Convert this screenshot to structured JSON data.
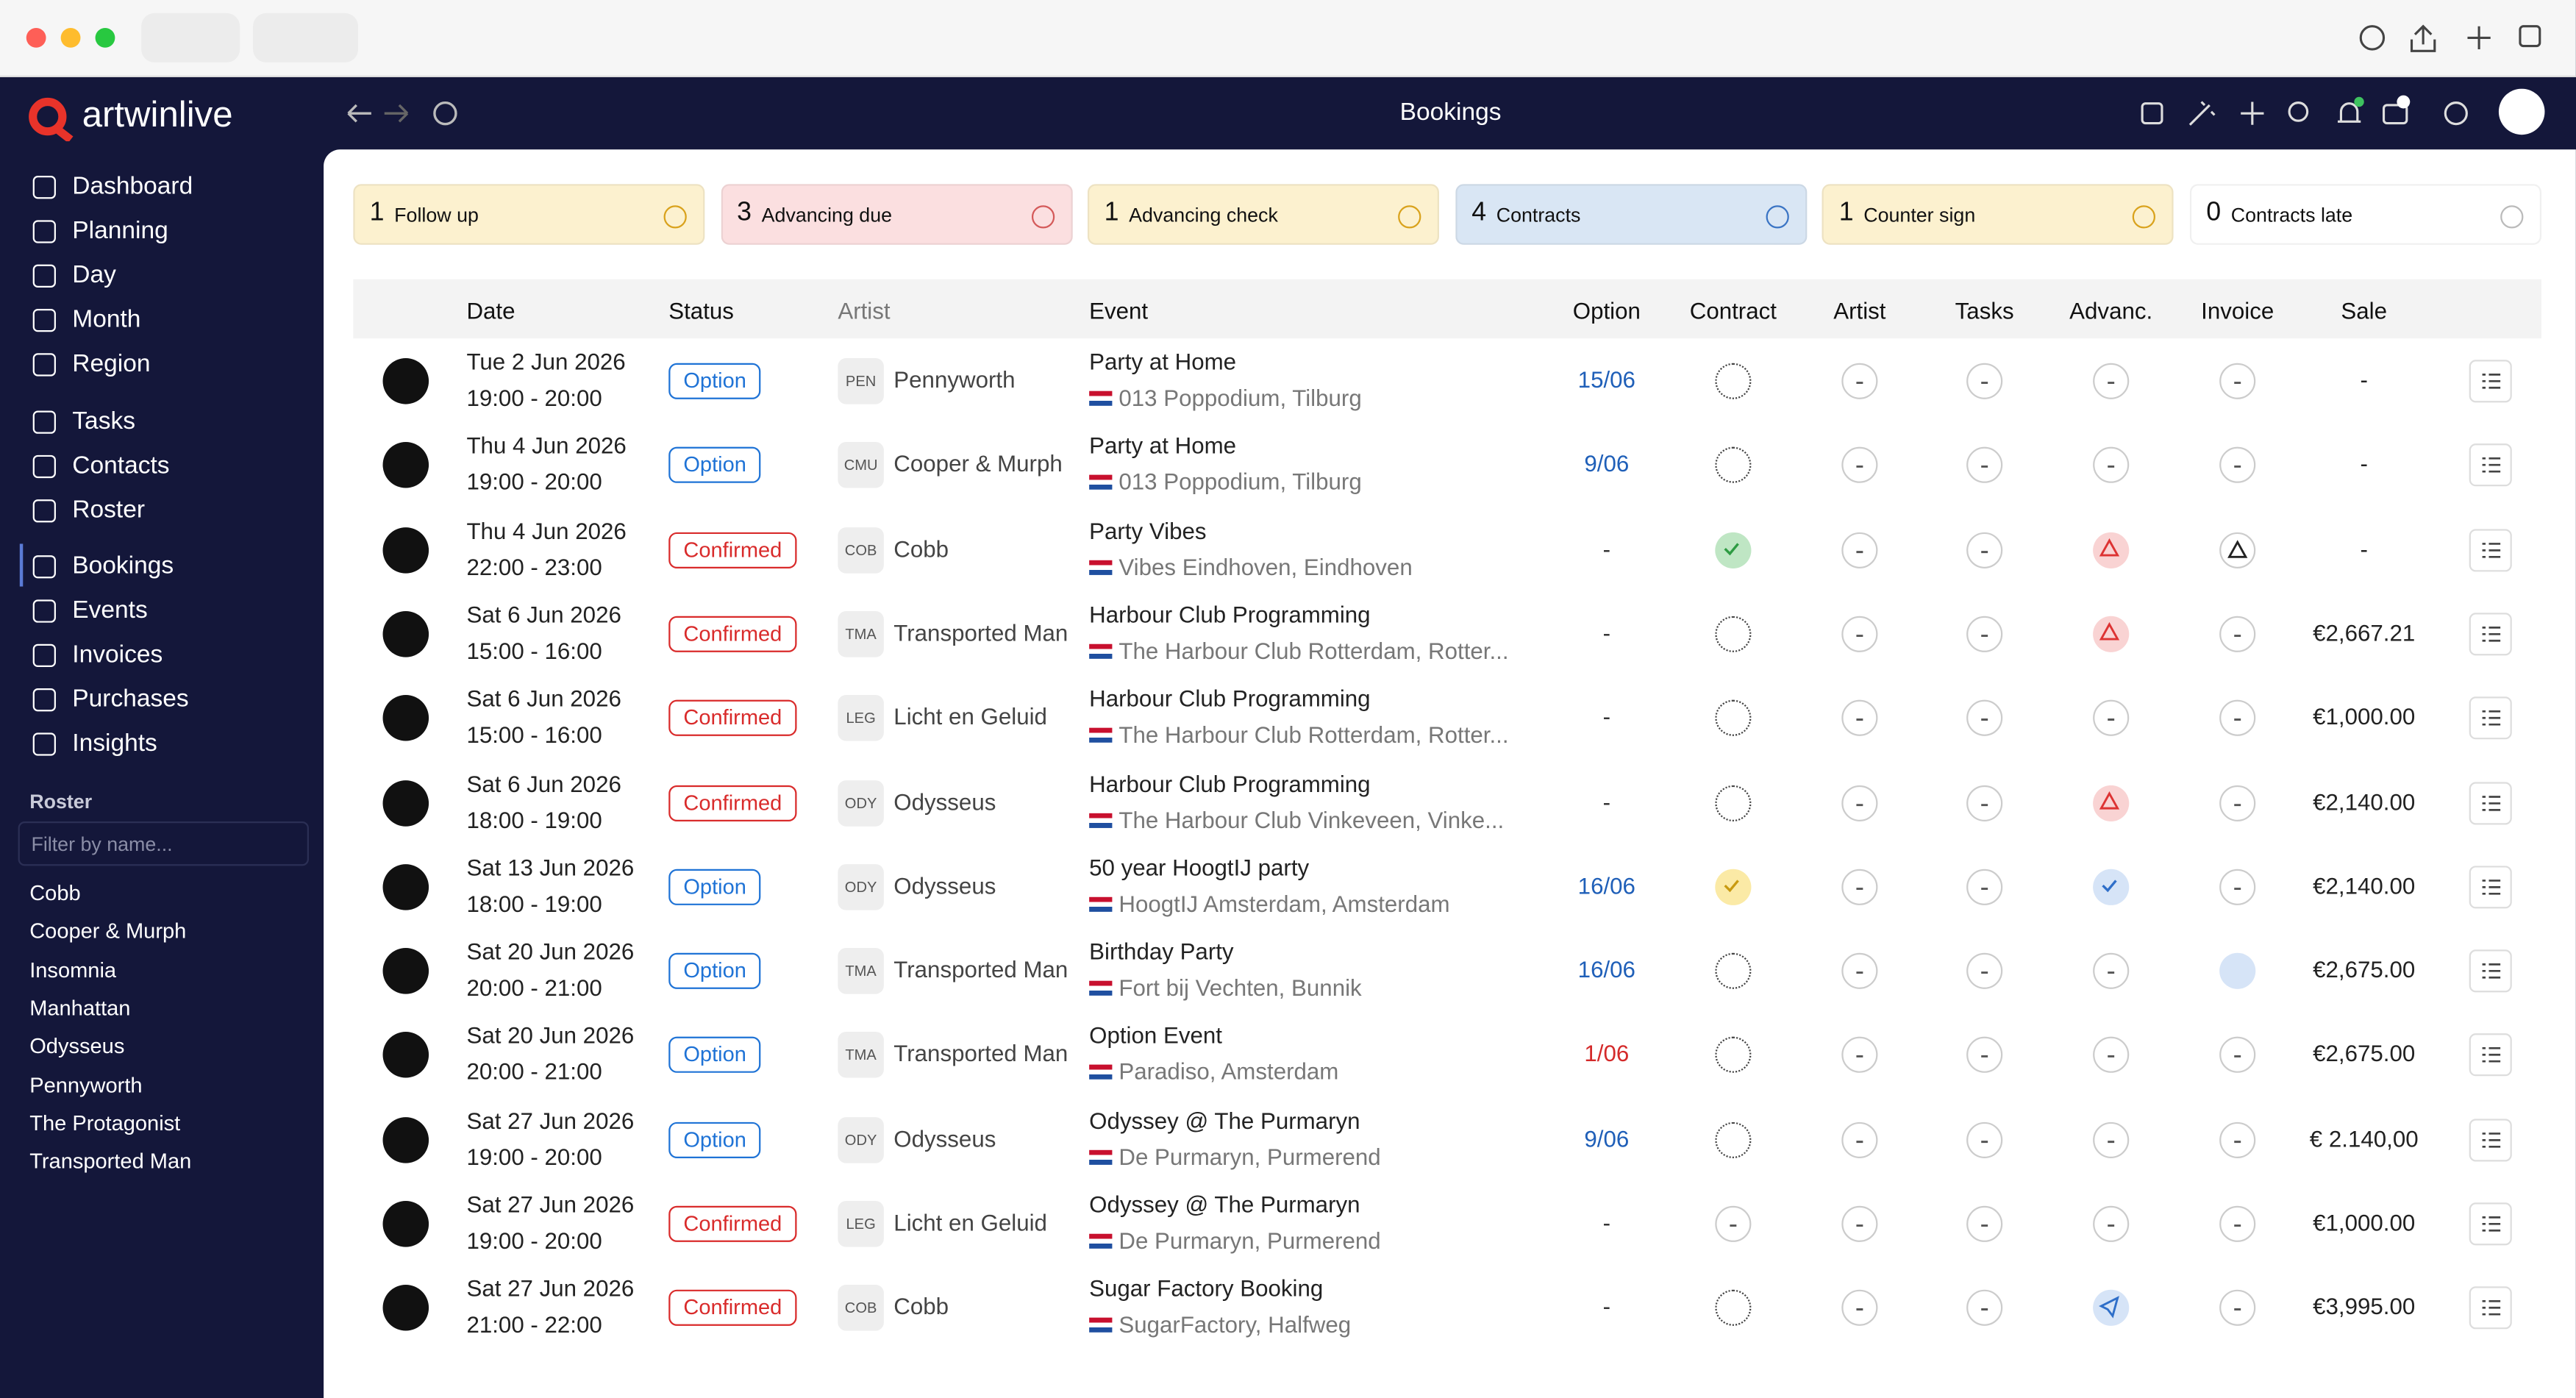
{
  "app": {
    "logo": "artwinlive",
    "title": "Bookings"
  },
  "nav": [
    "Dashboard",
    "Planning",
    "Day",
    "Month",
    "Region",
    "Tasks",
    "Contacts",
    "Roster",
    "Bookings",
    "Events",
    "Invoices",
    "Purchases",
    "Insights"
  ],
  "roster": {
    "heading": "Roster",
    "filter_placeholder": "Filter by name...",
    "names": [
      "Cobb",
      "Cooper & Murph",
      "Insomnia",
      "Manhattan",
      "Odysseus",
      "Pennyworth",
      "The Protagonist",
      "Transported Man"
    ]
  },
  "cards": [
    {
      "count": 1,
      "label": "Follow up",
      "color": "#fcf1cf"
    },
    {
      "count": 3,
      "label": "Advancing due",
      "color": "#fbdfe0"
    },
    {
      "count": 1,
      "label": "Advancing check",
      "color": "#fcf1cf"
    },
    {
      "count": 4,
      "label": "Contracts",
      "color": "#d9e6f4"
    },
    {
      "count": 1,
      "label": "Counter sign",
      "color": "#fcf1cf"
    },
    {
      "count": 0,
      "label": "Contracts late",
      "color": "#ffffff"
    }
  ],
  "table": {
    "headers": [
      "Date",
      "Status",
      "Artist",
      "Event",
      "Option",
      "Contract",
      "Artist",
      "Tasks",
      "Advanc.",
      "Invoice",
      "Sale"
    ],
    "rows": [
      {
        "date": "Tue 2 Jun 2026",
        "time": "19:00 - 20:00",
        "status": "Option",
        "status_color": "#1f73d6",
        "artist_code": "PEN",
        "artist": "Pennyworth",
        "event": "Party at Home",
        "venue": "013 Poppodium, Tilburg",
        "option": "15/06",
        "option_color": "#1f5fb8",
        "sale": "-"
      },
      {
        "date": "Thu 4 Jun 2026",
        "time": "19:00 - 20:00",
        "status": "Option",
        "status_color": "#1f73d6",
        "artist_code": "CMU",
        "artist": "Cooper & Murph",
        "event": "Party at Home",
        "venue": "013 Poppodium, Tilburg",
        "option": "9/06",
        "option_color": "#1f5fb8",
        "sale": "-"
      },
      {
        "date": "Thu 4 Jun 2026",
        "time": "22:00 - 23:00",
        "status": "Confirmed",
        "status_color": "#d92b2b",
        "artist_code": "COB",
        "artist": "Cobb",
        "event": "Party Vibes",
        "venue": "Vibes Eindhoven, Eindhoven",
        "option": "-",
        "option_color": "#333333",
        "sale": "-"
      },
      {
        "date": "Sat 6 Jun 2026",
        "time": "15:00 - 16:00",
        "status": "Confirmed",
        "status_color": "#d92b2b",
        "artist_code": "TMA",
        "artist": "Transported Man",
        "event": "Harbour Club Programming",
        "venue": "The Harbour Club Rotterdam, Rotter...",
        "option": "-",
        "option_color": "#333333",
        "sale": "€2,667.21"
      },
      {
        "date": "Sat 6 Jun 2026",
        "time": "15:00 - 16:00",
        "status": "Confirmed",
        "status_color": "#d92b2b",
        "artist_code": "LEG",
        "artist": "Licht en Geluid",
        "event": "Harbour Club Programming",
        "venue": "The Harbour Club Rotterdam, Rotter...",
        "option": "-",
        "option_color": "#333333",
        "sale": "€1,000.00"
      },
      {
        "date": "Sat 6 Jun 2026",
        "time": "18:00 - 19:00",
        "status": "Confirmed",
        "status_color": "#d92b2b",
        "artist_code": "ODY",
        "artist": "Odysseus",
        "event": "Harbour Club Programming",
        "venue": "The Harbour Club Vinkeveen, Vinke...",
        "option": "-",
        "option_color": "#333333",
        "sale": "€2,140.00"
      },
      {
        "date": "Sat 13 Jun 2026",
        "time": "18:00 - 19:00",
        "status": "Option",
        "status_color": "#1f73d6",
        "artist_code": "ODY",
        "artist": "Odysseus",
        "event": "50 year HoogtIJ party",
        "venue": "HoogtIJ Amsterdam, Amsterdam",
        "option": "16/06",
        "option_color": "#1f5fb8",
        "sale": "€2,140.00"
      },
      {
        "date": "Sat 20 Jun 2026",
        "time": "20:00 - 21:00",
        "status": "Option",
        "status_color": "#1f73d6",
        "artist_code": "TMA",
        "artist": "Transported Man",
        "event": "Birthday Party",
        "venue": "Fort bij Vechten, Bunnik",
        "option": "16/06",
        "option_color": "#1f5fb8",
        "sale": "€2,675.00"
      },
      {
        "date": "Sat 20 Jun 2026",
        "time": "20:00 - 21:00",
        "status": "Option",
        "status_color": "#1f73d6",
        "artist_code": "TMA",
        "artist": "Transported Man",
        "event": "Option Event",
        "venue": "Paradiso, Amsterdam",
        "option": "1/06",
        "option_color": "#d42a2a",
        "sale": "€2,675.00"
      },
      {
        "date": "Sat 27 Jun 2026",
        "time": "19:00 - 20:00",
        "status": "Option",
        "status_color": "#1f73d6",
        "artist_code": "ODY",
        "artist": "Odysseus",
        "event": "Odyssey @ The Purmaryn",
        "venue": "De Purmaryn, Purmerend",
        "option": "9/06",
        "option_color": "#1f5fb8",
        "sale": "€ 2.140,00"
      },
      {
        "date": "Sat 27 Jun 2026",
        "time": "19:00 - 20:00",
        "status": "Confirmed",
        "status_color": "#d92b2b",
        "artist_code": "LEG",
        "artist": "Licht en Geluid",
        "event": "Odyssey @ The Purmaryn",
        "venue": "De Purmaryn, Purmerend",
        "option": "-",
        "option_color": "#333333",
        "sale": "€1,000.00"
      },
      {
        "date": "Sat 27 Jun 2026",
        "time": "21:00 - 22:00",
        "status": "Confirmed",
        "status_color": "#d92b2b",
        "artist_code": "COB",
        "artist": "Cobb",
        "event": "Sugar Factory Booking",
        "venue": "SugarFactory, Halfweg",
        "option": "-",
        "option_color": "#333333",
        "sale": "€3,995.00"
      }
    ]
  }
}
